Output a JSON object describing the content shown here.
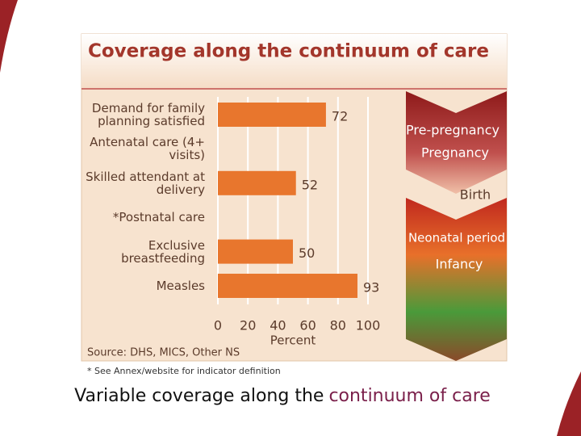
{
  "chart_data": {
    "type": "bar",
    "orientation": "horizontal",
    "title": "Coverage along the continuum of care",
    "categories": [
      "Demand for family planning satisfied",
      "Antenatal care (4+ visits)",
      "Skilled attendant at delivery",
      "*Postnatal care",
      "Exclusive breastfeeding",
      "Measles"
    ],
    "values": [
      72,
      null,
      52,
      null,
      50,
      93
    ],
    "color": "#e8762d",
    "xlim": [
      0,
      100
    ],
    "xticks": [
      0,
      20,
      40,
      60,
      80,
      100
    ],
    "xlabel": "Percent",
    "grid": true,
    "source": "Source: DHS, MICS, Other NS",
    "footnote": "* See Annex/website for indicator definition",
    "stages": [
      "Pre-pregnancy",
      "Pregnancy",
      "Birth",
      "Neonatal period",
      "Infancy"
    ]
  },
  "caption": {
    "text": "Variable coverage along the",
    "highlight": "continuum of care"
  }
}
